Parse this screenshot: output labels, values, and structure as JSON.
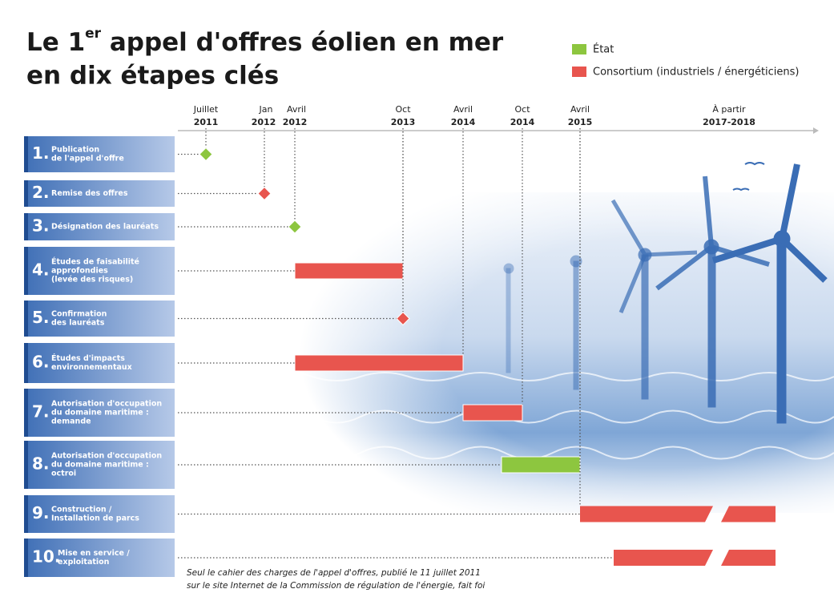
{
  "title": {
    "part1": "Le 1",
    "sup": "er",
    "part2": " appel d'offres éolien en mer",
    "line2": "en dix étapes clés"
  },
  "legend": [
    {
      "label": "État",
      "color": "#8dc63f"
    },
    {
      "label": "Consortium (industriels / énergéticiens)",
      "color": "#e8554e"
    }
  ],
  "timeline": [
    {
      "month": "Juillet",
      "year": "2011"
    },
    {
      "month": "Jan",
      "year": "2012"
    },
    {
      "month": "Avril",
      "year": "2012"
    },
    {
      "month": "Oct",
      "year": "2013"
    },
    {
      "month": "Avril",
      "year": "2014"
    },
    {
      "month": "Oct",
      "year": "2014"
    },
    {
      "month": "Avril",
      "year": "2015"
    },
    {
      "month": "À partir",
      "year": "2017-2018"
    }
  ],
  "steps": [
    {
      "number": "1.",
      "lines": [
        "Publication",
        "de l'appel d'offre"
      ]
    },
    {
      "number": "2.",
      "lines": [
        "Remise des offres"
      ]
    },
    {
      "number": "3.",
      "lines": [
        "Désignation des lauréats"
      ]
    },
    {
      "number": "4.",
      "lines": [
        "Études de faisabilité",
        "approfondies",
        "(levée des risques)"
      ]
    },
    {
      "number": "5.",
      "lines": [
        "Confirmation",
        "des lauréats"
      ]
    },
    {
      "number": "6.",
      "lines": [
        "Études d'impacts",
        "environnementaux"
      ]
    },
    {
      "number": "7.",
      "lines": [
        "Autorisation d'occupation",
        "du domaine maritime :",
        "demande"
      ]
    },
    {
      "number": "8.",
      "lines": [
        "Autorisation d'occupation",
        "du domaine maritime :",
        "octroi"
      ]
    },
    {
      "number": "9.",
      "lines": [
        "Construction /",
        "Installation de parcs"
      ]
    },
    {
      "number": "10.",
      "lines": [
        "Mise en service /",
        "exploitation"
      ]
    }
  ],
  "footnote": [
    "Seul le cahier des charges de l'appel d'offres, publié le 11 juillet 2011",
    "sur le site Internet de la Commission de régulation de l'énergie, fait foi"
  ]
}
